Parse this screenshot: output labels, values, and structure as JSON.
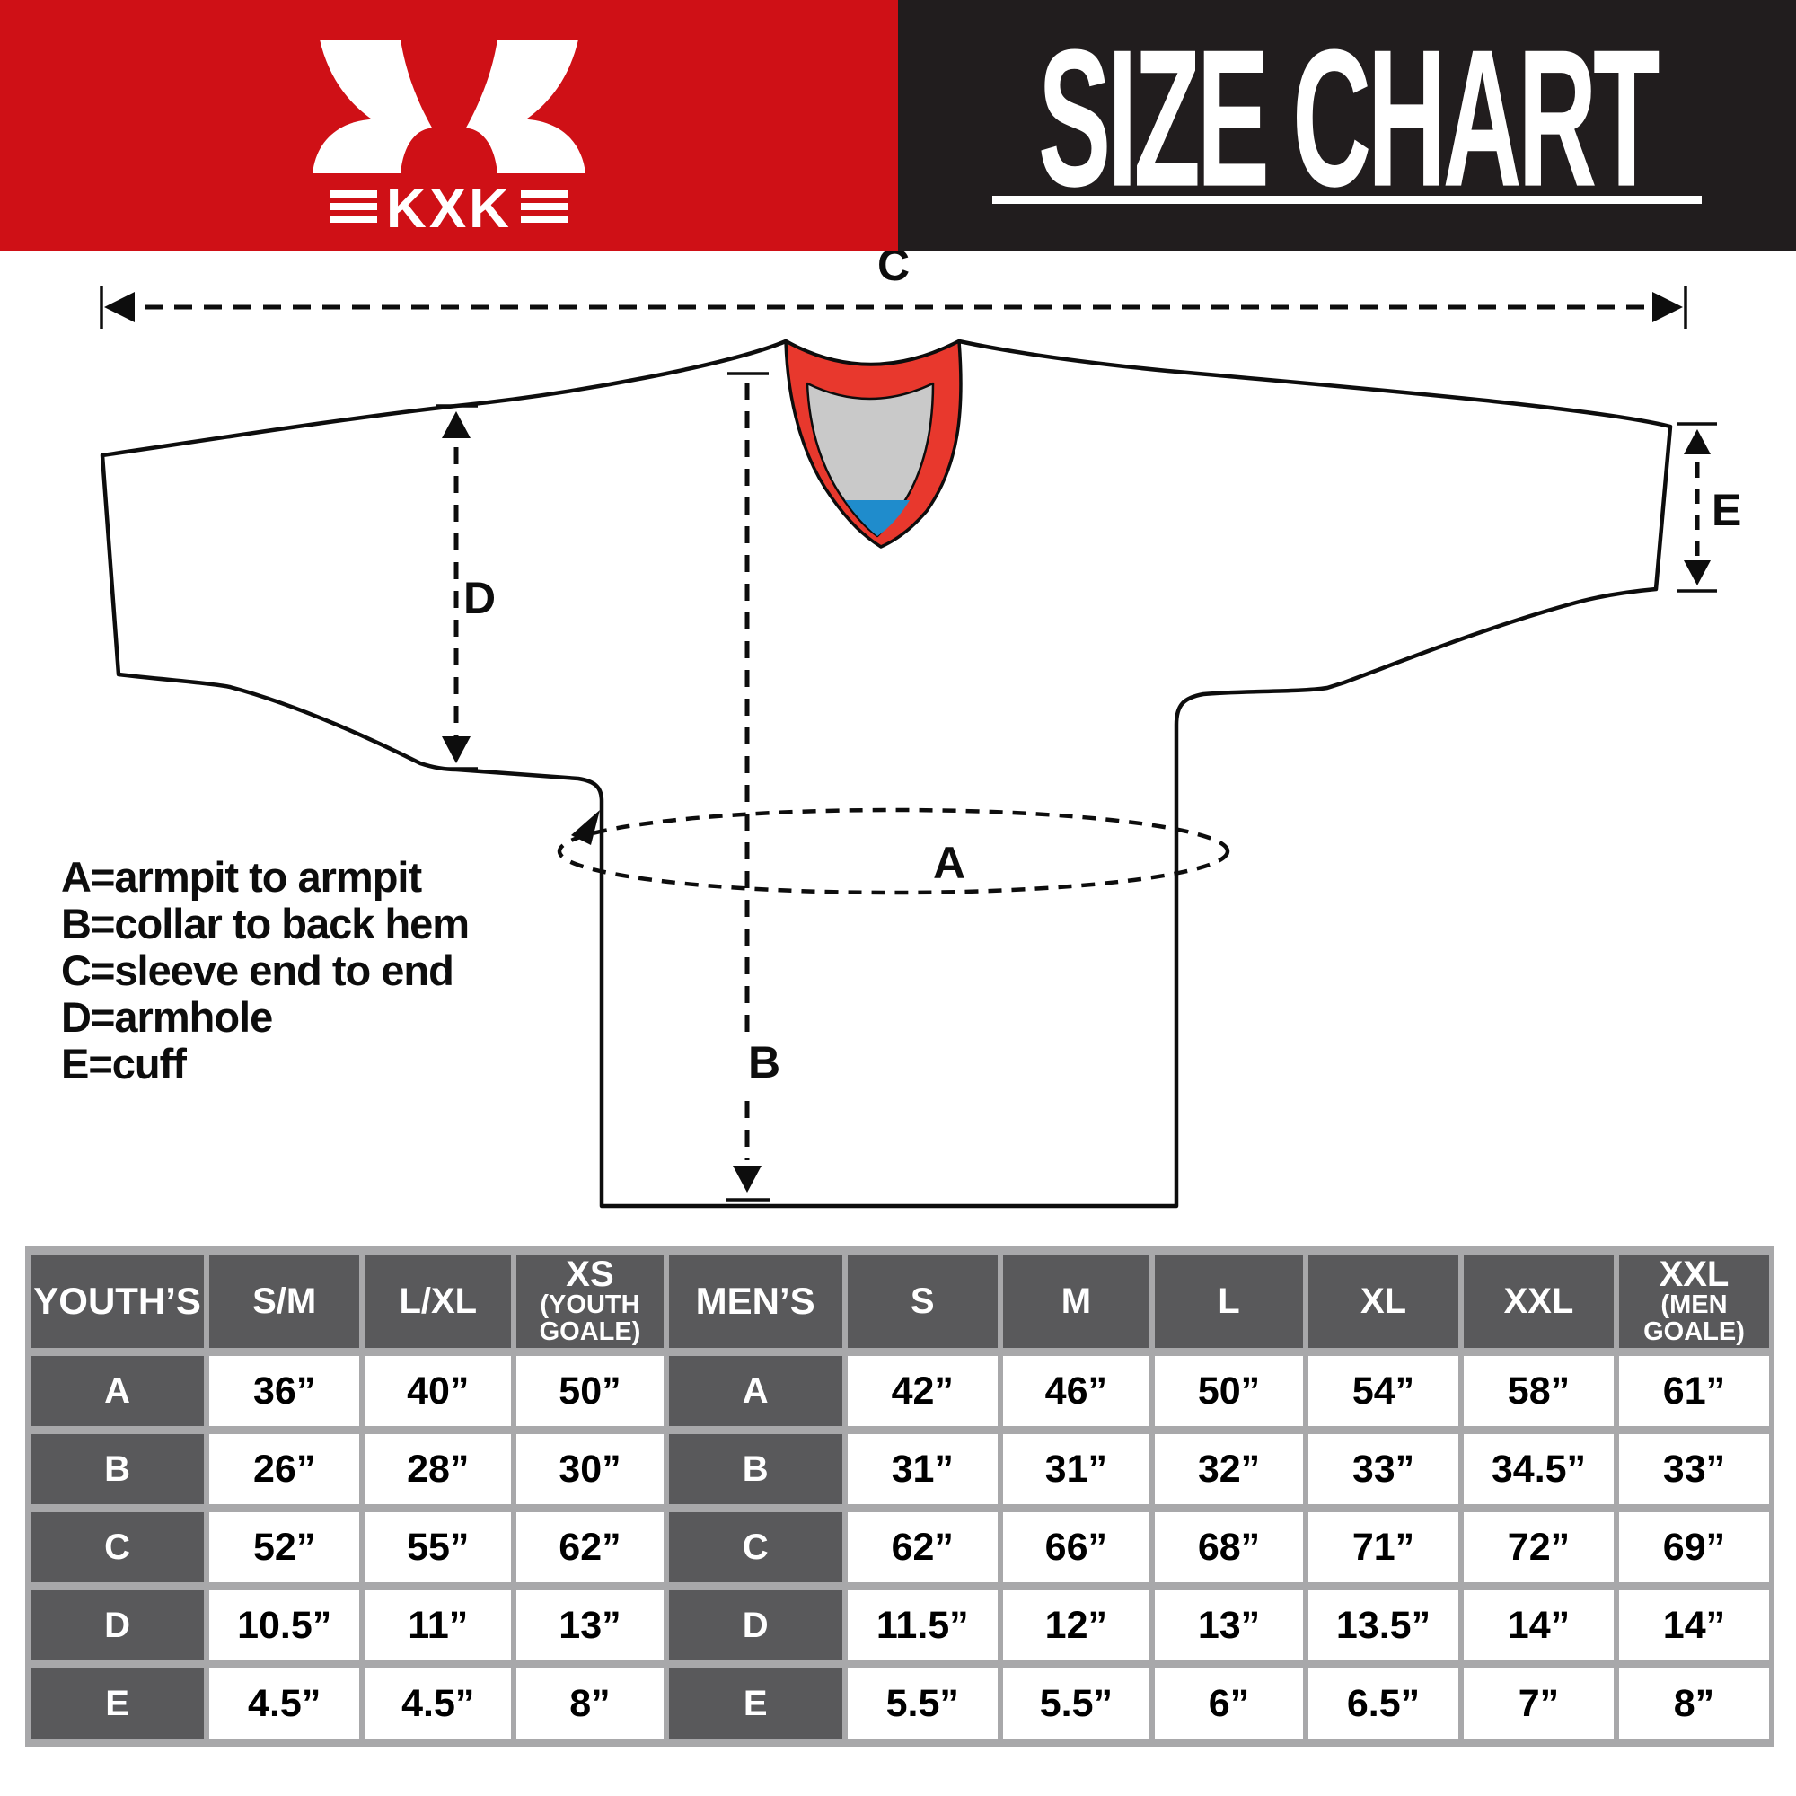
{
  "header": {
    "brand": "KXK",
    "title": "SIZE CHART"
  },
  "colors": {
    "header_red": "#cf1016",
    "header_black": "#211d1e",
    "collar_red": "#e8382d",
    "collar_gray": "#c9c9c9",
    "collar_blue": "#1f8ccc",
    "table_head_bg": "#59595b",
    "table_border": "#a8a8aa"
  },
  "diagram": {
    "labels": {
      "a": "A",
      "b": "B",
      "c": "C",
      "d": "D",
      "e": "E"
    },
    "legend": [
      "A=armpit to armpit",
      "B=collar to back hem",
      "C=sleeve end to end",
      "D=armhole",
      "E=cuff"
    ]
  },
  "size_table": {
    "youth": {
      "title": "YOUTH’S",
      "columns": [
        {
          "label": "S/M"
        },
        {
          "label": "L/XL"
        },
        {
          "label": "XS",
          "sub": [
            "(YOUTH",
            "GOALE)"
          ]
        }
      ],
      "rows": [
        {
          "label": "A",
          "values": [
            "36”",
            "40”",
            "50”"
          ]
        },
        {
          "label": "B",
          "values": [
            "26”",
            "28”",
            "30”"
          ]
        },
        {
          "label": "C",
          "values": [
            "52”",
            "55”",
            "62”"
          ]
        },
        {
          "label": "D",
          "values": [
            "10.5”",
            "11”",
            "13”"
          ]
        },
        {
          "label": "E",
          "values": [
            "4.5”",
            "4.5”",
            "8”"
          ]
        }
      ]
    },
    "mens": {
      "title": "MEN’S",
      "columns": [
        {
          "label": "S"
        },
        {
          "label": "M"
        },
        {
          "label": "L"
        },
        {
          "label": "XL"
        },
        {
          "label": "XXL"
        },
        {
          "label": "XXL",
          "sub": [
            "(MEN",
            "GOALE)"
          ]
        }
      ],
      "rows": [
        {
          "label": "A",
          "values": [
            "42”",
            "46”",
            "50”",
            "54”",
            "58”",
            "61”"
          ]
        },
        {
          "label": "B",
          "values": [
            "31”",
            "31”",
            "32”",
            "33”",
            "34.5”",
            "33”"
          ]
        },
        {
          "label": "C",
          "values": [
            "62”",
            "66”",
            "68”",
            "71”",
            "72”",
            "69”"
          ]
        },
        {
          "label": "D",
          "values": [
            "11.5”",
            "12”",
            "13”",
            "13.5”",
            "14”",
            "14”"
          ]
        },
        {
          "label": "E",
          "values": [
            "5.5”",
            "5.5”",
            "6”",
            "6.5”",
            "7”",
            "8”"
          ]
        }
      ]
    }
  }
}
